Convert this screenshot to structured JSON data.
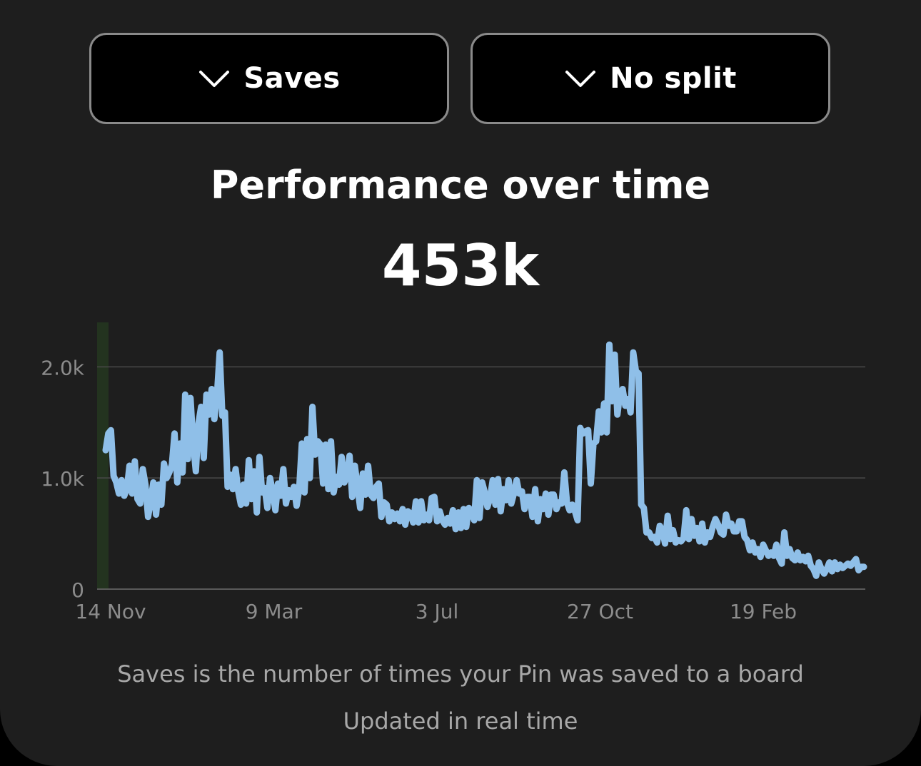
{
  "controls": {
    "metric_dropdown": {
      "label": "Saves",
      "icon": "chevron-down-icon"
    },
    "split_dropdown": {
      "label": "No split",
      "icon": "chevron-down-icon"
    }
  },
  "header": {
    "title": "Performance over time",
    "total": "453k"
  },
  "chart_data": {
    "type": "line",
    "title": "",
    "xlabel": "",
    "ylabel": "",
    "x_tick_labels": [
      "14 Nov",
      "9 Mar",
      "3 Jul",
      "27 Oct",
      "19 Feb"
    ],
    "y_tick_labels": [
      "0",
      "1.0k",
      "2.0k"
    ],
    "y_ticks": [
      0,
      1000,
      2000
    ],
    "ylim": [
      0,
      2400
    ],
    "grid": true,
    "legend": "none",
    "line_color": "#8fbfe8",
    "highlight_band_color": "#23331f",
    "series": [
      {
        "values": [
          1250,
          1400,
          1430,
          1020,
          960,
          860,
          980,
          840,
          900,
          1110,
          860,
          1150,
          810,
          770,
          1080,
          940,
          650,
          800,
          960,
          670,
          940,
          760,
          1130,
          1000,
          1050,
          1120,
          1400,
          960,
          1310,
          1050,
          1750,
          1170,
          1720,
          1320,
          1060,
          1490,
          1640,
          1180,
          1750,
          1570,
          1800,
          1530,
          1750,
          2130,
          1560,
          1590,
          920,
          1030,
          900,
          1080,
          880,
          760,
          940,
          770,
          1160,
          810,
          1060,
          690,
          1190,
          870,
          910,
          730,
          1000,
          880,
          710,
          950,
          840,
          1080,
          770,
          890,
          830,
          920,
          750,
          900,
          1310,
          870,
          1350,
          1000,
          1640,
          1210,
          1330,
          1300,
          950,
          1300,
          900,
          1330,
          870,
          1010,
          940,
          1190,
          960,
          1020,
          1200,
          830,
          1110,
          920,
          730,
          1040,
          850,
          1110,
          850,
          820,
          920,
          950,
          650,
          780,
          760,
          610,
          690,
          630,
          680,
          610,
          720,
          580,
          700,
          680,
          600,
          790,
          600,
          790,
          620,
          670,
          620,
          820,
          830,
          610,
          700,
          620,
          580,
          640,
          590,
          710,
          540,
          690,
          550,
          720,
          560,
          730,
          700,
          620,
          980,
          640,
          960,
          870,
          740,
          820,
          980,
          760,
          990,
          700,
          900,
          800,
          980,
          770,
          860,
          980,
          860,
          880,
          720,
          830,
          830,
          650,
          900,
          610,
          810,
          720,
          860,
          670,
          850,
          850,
          720,
          780,
          770,
          1050,
          780,
          710,
          760,
          700,
          620,
          1450,
          1400,
          1420,
          1430,
          950,
          1310,
          1330,
          1600,
          1410,
          1670,
          1410,
          2200,
          1690,
          2110,
          1570,
          1760,
          1800,
          1650,
          1710,
          1590,
          2130,
          1960,
          1940,
          760,
          730,
          510,
          510,
          460,
          470,
          420,
          570,
          530,
          410,
          660,
          450,
          530,
          420,
          440,
          430,
          460,
          710,
          450,
          630,
          480,
          550,
          430,
          590,
          420,
          510,
          470,
          560,
          630,
          580,
          510,
          490,
          670,
          570,
          590,
          520,
          520,
          610,
          610,
          470,
          440,
          350,
          420,
          330,
          360,
          290,
          400,
          350,
          300,
          330,
          300,
          400,
          280,
          230,
          510,
          300,
          360,
          280,
          260,
          330,
          260,
          290,
          250,
          300,
          210,
          180,
          120,
          240,
          180,
          140,
          180,
          240,
          160,
          240,
          180,
          220,
          190,
          210,
          230,
          210,
          240,
          270,
          170,
          200,
          200
        ]
      }
    ]
  },
  "footer": {
    "description": "Saves is the number of times your Pin was saved to a board",
    "update_note": "Updated in real time"
  }
}
